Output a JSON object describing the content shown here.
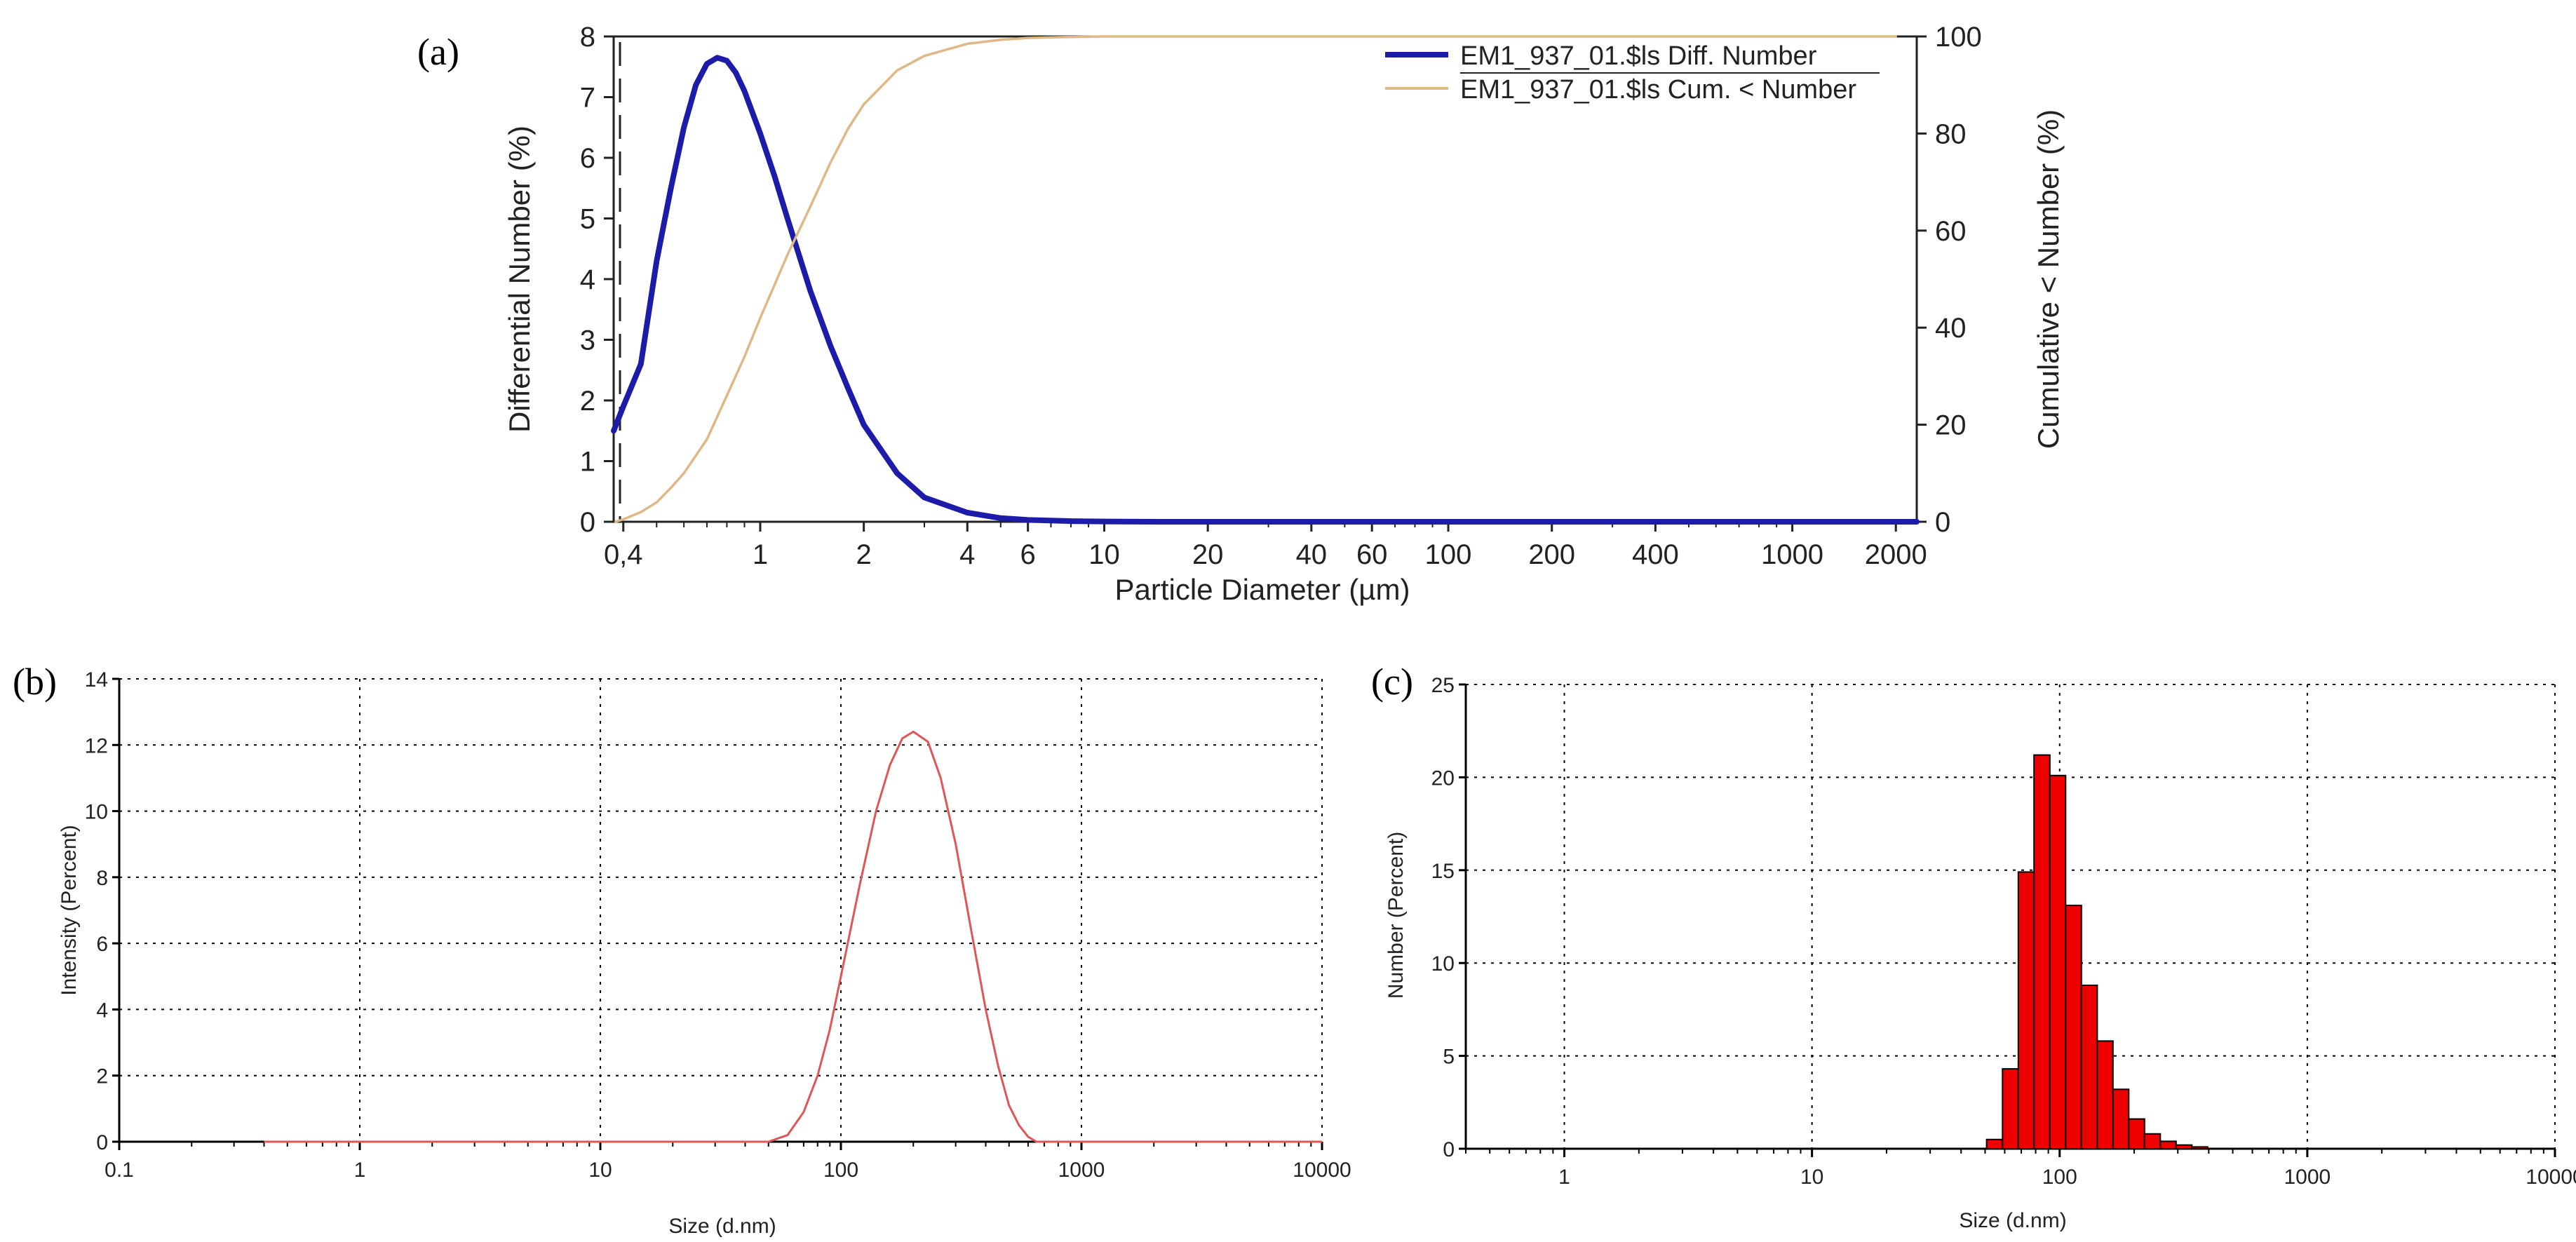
{
  "panels": {
    "a": "(a)",
    "b": "(b)",
    "c": "(c)"
  },
  "chart_data": [
    {
      "id": "a",
      "type": "line",
      "xscale": "log",
      "xlabel": "Particle Diameter (µm)",
      "ylabel": "Differential Number (%)",
      "y2label": "Cumulative < Number (%)",
      "xlim": [
        0.375,
        2300
      ],
      "ylim": [
        0,
        8
      ],
      "y2lim": [
        0,
        100
      ],
      "xticks": [
        {
          "v": 0.4,
          "label": "0,4"
        },
        {
          "v": 1,
          "label": "1"
        },
        {
          "v": 2,
          "label": "2"
        },
        {
          "v": 4,
          "label": "4"
        },
        {
          "v": 6,
          "label": "6"
        },
        {
          "v": 10,
          "label": "10"
        },
        {
          "v": 20,
          "label": "20"
        },
        {
          "v": 40,
          "label": "40"
        },
        {
          "v": 60,
          "label": "60"
        },
        {
          "v": 100,
          "label": "100"
        },
        {
          "v": 200,
          "label": "200"
        },
        {
          "v": 400,
          "label": "400"
        },
        {
          "v": 1000,
          "label": "1000"
        },
        {
          "v": 2000,
          "label": "2000"
        }
      ],
      "yticks": [
        0,
        1,
        2,
        3,
        4,
        5,
        6,
        7,
        8
      ],
      "y2ticks": [
        0,
        20,
        40,
        60,
        80,
        100
      ],
      "legend_position": "top-right",
      "series": [
        {
          "name": "EM1_937_01.$ls Diff. Number",
          "axis": "left",
          "color": "#1c1ca8",
          "x": [
            0.375,
            0.4,
            0.45,
            0.5,
            0.55,
            0.6,
            0.65,
            0.7,
            0.75,
            0.8,
            0.85,
            0.9,
            1.0,
            1.1,
            1.2,
            1.4,
            1.6,
            1.8,
            2.0,
            2.5,
            3.0,
            4.0,
            5.0,
            6.0,
            8.0,
            10,
            15,
            20,
            50,
            100,
            500,
            2300
          ],
          "y": [
            1.5,
            1.9,
            2.6,
            4.3,
            5.5,
            6.5,
            7.2,
            7.55,
            7.65,
            7.6,
            7.4,
            7.1,
            6.4,
            5.7,
            5.0,
            3.8,
            2.9,
            2.2,
            1.6,
            0.8,
            0.4,
            0.15,
            0.06,
            0.03,
            0.01,
            0.005,
            0.0,
            0.0,
            0.0,
            0.0,
            0.0,
            0.0
          ]
        },
        {
          "name": "EM1_937_01.$ls Cum. < Number",
          "axis": "right",
          "color": "#deb887",
          "x": [
            0.38,
            0.4,
            0.45,
            0.5,
            0.55,
            0.6,
            0.7,
            0.8,
            0.9,
            1.0,
            1.2,
            1.4,
            1.6,
            1.8,
            2.0,
            2.5,
            3.0,
            4.0,
            5.0,
            6.0,
            8.0,
            10,
            20,
            100,
            1000,
            2000
          ],
          "y": [
            0.0,
            0.5,
            2,
            4,
            7,
            10,
            17,
            26,
            34,
            42,
            55,
            65,
            74,
            81,
            86,
            93,
            96,
            98.5,
            99.3,
            99.7,
            99.9,
            100,
            100,
            100,
            100,
            100
          ]
        }
      ]
    },
    {
      "id": "b",
      "type": "line",
      "xscale": "log",
      "xlabel": "Size (d.nm)",
      "ylabel": "Intensity (Percent)",
      "xlim": [
        0.1,
        10000
      ],
      "ylim": [
        0,
        14
      ],
      "xticks": [
        {
          "v": 0.1,
          "label": "0.1"
        },
        {
          "v": 1,
          "label": "1"
        },
        {
          "v": 10,
          "label": "10"
        },
        {
          "v": 100,
          "label": "100"
        },
        {
          "v": 1000,
          "label": "1000"
        },
        {
          "v": 10000,
          "label": "10000"
        }
      ],
      "yticks": [
        0,
        2,
        4,
        6,
        8,
        10,
        12,
        14
      ],
      "grid": true,
      "series": [
        {
          "name": "Intensity",
          "color": "#e05555",
          "x": [
            0.4,
            50,
            60,
            70,
            80,
            90,
            100,
            120,
            140,
            160,
            180,
            200,
            230,
            260,
            300,
            350,
            400,
            450,
            500,
            550,
            600,
            650,
            10000
          ],
          "y": [
            0,
            0,
            0.2,
            0.9,
            2.0,
            3.4,
            5.0,
            7.8,
            10.0,
            11.4,
            12.2,
            12.4,
            12.1,
            11.0,
            9.0,
            6.3,
            4.0,
            2.3,
            1.1,
            0.5,
            0.15,
            0,
            0
          ]
        }
      ]
    },
    {
      "id": "c",
      "type": "bar",
      "xscale": "log",
      "xlabel": "Size (d.nm)",
      "ylabel": "Number (Percent)",
      "xlim": [
        0.4,
        10000
      ],
      "ylim": [
        0,
        25
      ],
      "xticks": [
        {
          "v": 1,
          "label": "1"
        },
        {
          "v": 10,
          "label": "10"
        },
        {
          "v": 100,
          "label": "100"
        },
        {
          "v": 1000,
          "label": "1000"
        },
        {
          "v": 10000,
          "label": "10000"
        }
      ],
      "yticks": [
        0,
        5,
        10,
        15,
        20,
        25
      ],
      "grid": true,
      "color": "#ee0000",
      "bins": [
        {
          "x0": 50.7,
          "x1": 58.8,
          "value": 0.5
        },
        {
          "x0": 58.8,
          "x1": 68.1,
          "value": 4.3
        },
        {
          "x0": 68.1,
          "x1": 78.8,
          "value": 14.9
        },
        {
          "x0": 78.8,
          "x1": 91.3,
          "value": 21.2
        },
        {
          "x0": 91.3,
          "x1": 105.7,
          "value": 20.1
        },
        {
          "x0": 105.7,
          "x1": 122.4,
          "value": 13.1
        },
        {
          "x0": 122.4,
          "x1": 141.8,
          "value": 8.8
        },
        {
          "x0": 141.8,
          "x1": 164.2,
          "value": 5.8
        },
        {
          "x0": 164.2,
          "x1": 190.1,
          "value": 3.2
        },
        {
          "x0": 190.1,
          "x1": 220.2,
          "value": 1.6
        },
        {
          "x0": 220.2,
          "x1": 255.0,
          "value": 0.8
        },
        {
          "x0": 255.0,
          "x1": 295.3,
          "value": 0.4
        },
        {
          "x0": 295.3,
          "x1": 342.0,
          "value": 0.2
        },
        {
          "x0": 342.0,
          "x1": 396.1,
          "value": 0.1
        }
      ]
    }
  ]
}
